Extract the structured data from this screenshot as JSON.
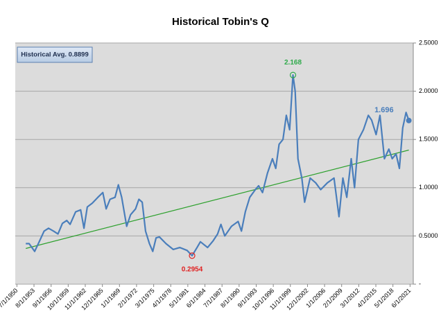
{
  "chart_data": {
    "type": "line",
    "title": "Historical Tobin's Q",
    "note": "Historical Avg. 0.8899",
    "x": [
      1952.1,
      1952.7,
      1953.7,
      1954.6,
      1955.4,
      1956.2,
      1957.1,
      1957.9,
      1958.7,
      1959.5,
      1960.1,
      1961.1,
      1962.0,
      1962.6,
      1963.2,
      1964.1,
      1965.1,
      1966.0,
      1966.6,
      1967.3,
      1968.2,
      1968.8,
      1969.4,
      1970.3,
      1971.0,
      1971.9,
      1972.5,
      1973.1,
      1973.7,
      1974.4,
      1975.0,
      1975.6,
      1976.2,
      1977.4,
      1978.7,
      1979.9,
      1981.2,
      1982.1,
      1983.0,
      1983.6,
      1984.9,
      1985.9,
      1986.7,
      1987.3,
      1988.0,
      1989.2,
      1990.4,
      1991.0,
      1991.7,
      1992.5,
      1993.5,
      1994.1,
      1994.8,
      1995.7,
      1996.6,
      1997.2,
      1997.8,
      1998.5,
      1999.1,
      1999.7,
      2000.3,
      2000.7,
      2001.2,
      2001.9,
      2002.4,
      2003.4,
      2004.4,
      2005.3,
      2006.5,
      2007.7,
      2008.6,
      2009.3,
      2010.0,
      2010.8,
      2011.4,
      2012.1,
      2013.0,
      2013.9,
      2014.5,
      2015.3,
      2016.0,
      2016.8,
      2017.6,
      2018.2,
      2018.9,
      2019.5,
      2020.1,
      2020.7,
      2021.2
    ],
    "series": [
      {
        "color": "#4a7ebb",
        "values": [
          0.42,
          0.42,
          0.34,
          0.45,
          0.55,
          0.58,
          0.55,
          0.52,
          0.63,
          0.66,
          0.62,
          0.75,
          0.77,
          0.58,
          0.8,
          0.84,
          0.9,
          0.95,
          0.78,
          0.88,
          0.9,
          1.03,
          0.9,
          0.6,
          0.72,
          0.78,
          0.88,
          0.85,
          0.55,
          0.42,
          0.34,
          0.48,
          0.49,
          0.42,
          0.36,
          0.38,
          0.35,
          0.2954,
          0.38,
          0.44,
          0.38,
          0.45,
          0.52,
          0.62,
          0.5,
          0.6,
          0.65,
          0.55,
          0.75,
          0.9,
          0.98,
          1.02,
          0.95,
          1.15,
          1.3,
          1.2,
          1.45,
          1.5,
          1.75,
          1.6,
          2.168,
          2.0,
          1.3,
          1.1,
          0.85,
          1.1,
          1.05,
          0.98,
          1.05,
          1.1,
          0.7,
          1.1,
          0.9,
          1.3,
          1.0,
          1.5,
          1.6,
          1.75,
          1.7,
          1.55,
          1.75,
          1.3,
          1.4,
          1.3,
          1.35,
          1.2,
          1.62,
          1.78,
          1.696
        ]
      }
    ],
    "trend_line": {
      "color": "#2ca02c",
      "x": [
        1952.1,
        2021.2
      ],
      "values": [
        0.37,
        1.39
      ]
    },
    "annotations": [
      {
        "text": "2.168",
        "x": 2000.3,
        "value": 2.168,
        "color": "#2eaa4a",
        "position": "above"
      },
      {
        "text": "0.2954",
        "x": 1982.1,
        "value": 0.2954,
        "color": "#e02020",
        "position": "below"
      },
      {
        "text": "1.696",
        "x": 2021.2,
        "value": 1.696,
        "color": "#4a7ebb",
        "position": "left"
      }
    ],
    "xlim": [
      1950.2,
      2022.0
    ],
    "xticks": [
      {
        "value": 1950.5,
        "label": "7/1/1950"
      },
      {
        "value": 1953.58,
        "label": "8/1/1953"
      },
      {
        "value": 1956.67,
        "label": "9/1/1956"
      },
      {
        "value": 1959.75,
        "label": "10/1/1959"
      },
      {
        "value": 1962.83,
        "label": "11/1/1962"
      },
      {
        "value": 1965.92,
        "label": "12/1/1965"
      },
      {
        "value": 1969.0,
        "label": "1/1/1969"
      },
      {
        "value": 1972.08,
        "label": "2/1/1972"
      },
      {
        "value": 1975.17,
        "label": "3/1/1975"
      },
      {
        "value": 1978.25,
        "label": "4/1/1978"
      },
      {
        "value": 1981.33,
        "label": "5/1/1981"
      },
      {
        "value": 1984.42,
        "label": "6/1/1984"
      },
      {
        "value": 1987.5,
        "label": "7/1/1987"
      },
      {
        "value": 1990.58,
        "label": "8/1/1990"
      },
      {
        "value": 1993.67,
        "label": "9/1/1993"
      },
      {
        "value": 1996.75,
        "label": "10/1/1996"
      },
      {
        "value": 1999.83,
        "label": "11/1/1999"
      },
      {
        "value": 2002.92,
        "label": "12/1/2002"
      },
      {
        "value": 2006.0,
        "label": "1/1/2006"
      },
      {
        "value": 2009.08,
        "label": "2/1/2009"
      },
      {
        "value": 2012.17,
        "label": "3/1/2012"
      },
      {
        "value": 2015.25,
        "label": "4/1/2015"
      },
      {
        "value": 2018.33,
        "label": "5/1/2018"
      },
      {
        "value": 2021.42,
        "label": "6/1/2021"
      }
    ],
    "ylim": [
      0,
      2.5
    ],
    "yticks": [
      {
        "value": 0,
        "label": "-"
      },
      {
        "value": 0.5,
        "label": "0.5000"
      },
      {
        "value": 1.0,
        "label": "1.0000"
      },
      {
        "value": 1.5,
        "label": "1.5000"
      },
      {
        "value": 2.0,
        "label": "2.0000"
      },
      {
        "value": 2.5,
        "label": "2.5000"
      }
    ],
    "grid": true
  }
}
